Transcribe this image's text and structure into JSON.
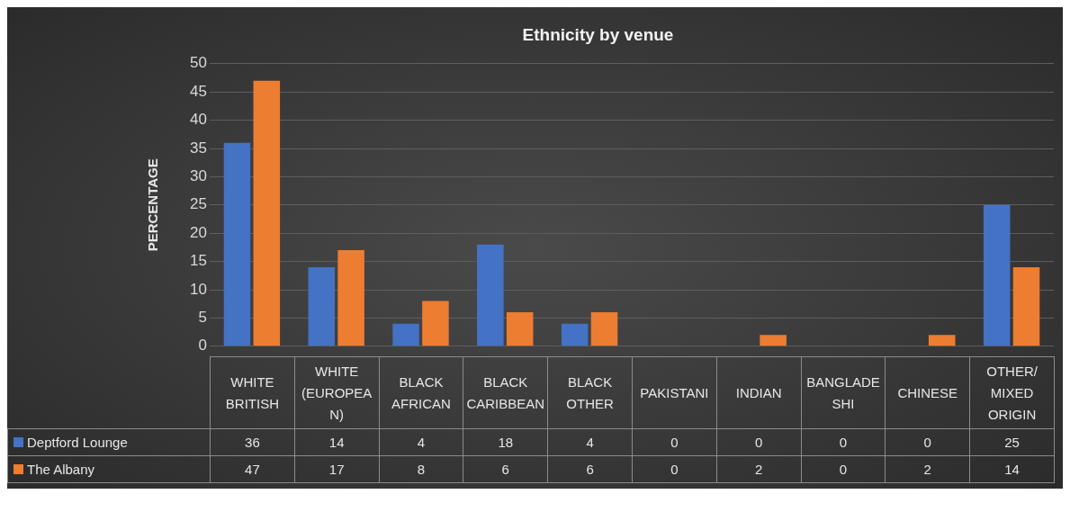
{
  "chart_data": {
    "type": "bar",
    "title": "Ethnicity by venue",
    "ylabel": "PERCENTAGE",
    "categories": [
      "WHITE BRITISH",
      "WHITE (EUROPEAN)",
      "BLACK AFRICAN",
      "BLACK CARIBBEAN",
      "BLACK OTHER",
      "PAKISTANI",
      "INDIAN",
      "BANGLADESHI",
      "CHINESE",
      "OTHER/ MIXED ORIGIN"
    ],
    "series": [
      {
        "name": "Deptford Lounge",
        "color": "#4472c4",
        "values": [
          36,
          14,
          4,
          18,
          4,
          0,
          0,
          0,
          0,
          25
        ]
      },
      {
        "name": "The Albany",
        "color": "#ed7d31",
        "values": [
          47,
          17,
          8,
          6,
          6,
          0,
          2,
          0,
          2,
          14
        ]
      }
    ],
    "ylim": [
      0,
      50
    ],
    "yticks": [
      0,
      5,
      10,
      15,
      20,
      25,
      30,
      35,
      40,
      45,
      50
    ],
    "grid": "y",
    "legend": "bottom",
    "data_labels": true
  }
}
